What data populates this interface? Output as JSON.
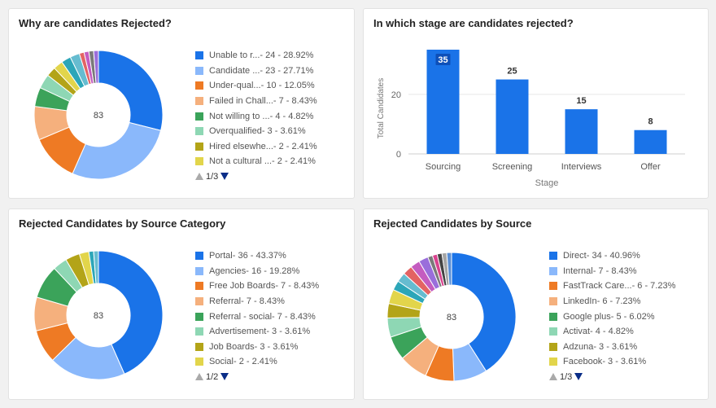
{
  "colors": {
    "accent": "#1a73e8",
    "palette": [
      "#1a73e8",
      "#8ab8fb",
      "#ee7a24",
      "#f5b07d",
      "#3ba35a",
      "#8ed7b4",
      "#b3a418",
      "#e2d54b",
      "#2ca6b8",
      "#e36363",
      "#c45cc0",
      "#9a6edb",
      "#7a7a7a"
    ]
  },
  "panels": {
    "rejection_reasons": {
      "title": "Why are candidates Rejected?",
      "center_total": "83",
      "pager": "1/3",
      "legend": [
        {
          "label": "Unable to r...",
          "stat": " - 24 - 28.92%"
        },
        {
          "label": "Candidate ...",
          "stat": " - 23 - 27.71%"
        },
        {
          "label": "Under-qual...",
          "stat": " - 10 - 12.05%"
        },
        {
          "label": "Failed in Chall...",
          "stat": " - 7 - 8.43%"
        },
        {
          "label": "Not willing to ...",
          "stat": " - 4 - 4.82%"
        },
        {
          "label": "Overqualified",
          "stat": " - 3 - 3.61%"
        },
        {
          "label": "Hired elsewhe...",
          "stat": " - 2 - 2.41%"
        },
        {
          "label": "Not a cultural ...",
          "stat": " - 2 - 2.41%"
        }
      ]
    },
    "rejection_stage": {
      "title": "In which stage are candidates rejected?"
    },
    "source_category": {
      "title": "Rejected Candidates by Source Category",
      "center_total": "83",
      "pager": "1/2",
      "legend": [
        {
          "label": "Portal",
          "stat": " - 36 - 43.37%"
        },
        {
          "label": "Agencies",
          "stat": " - 16 - 19.28%"
        },
        {
          "label": "Free Job Boards",
          "stat": " - 7 - 8.43%"
        },
        {
          "label": "Referral",
          "stat": " - 7 - 8.43%"
        },
        {
          "label": "Referral - social",
          "stat": " - 7 - 8.43%"
        },
        {
          "label": "Advertisement",
          "stat": " - 3 - 3.61%"
        },
        {
          "label": "Job Boards",
          "stat": " - 3 - 3.61%"
        },
        {
          "label": "Social",
          "stat": " - 2 - 2.41%"
        }
      ]
    },
    "source": {
      "title": "Rejected Candidates by Source",
      "center_total": "83",
      "pager": "1/3",
      "legend": [
        {
          "label": "Direct",
          "stat": " - 34 - 40.96%"
        },
        {
          "label": "Internal",
          "stat": " - 7 - 8.43%"
        },
        {
          "label": "FastTrack Care...",
          "stat": " - 6 - 7.23%"
        },
        {
          "label": "LinkedIn",
          "stat": " - 6 - 7.23%"
        },
        {
          "label": "Google plus",
          "stat": " - 5 - 6.02%"
        },
        {
          "label": "Activat",
          "stat": " - 4 - 4.82%"
        },
        {
          "label": "Adzuna",
          "stat": " - 3 - 3.61%"
        },
        {
          "label": "Facebook",
          "stat": " - 3 - 3.61%"
        }
      ]
    }
  },
  "chart_data": [
    {
      "type": "pie",
      "title": "Why are candidates Rejected?",
      "total": 83,
      "values": [
        24,
        23,
        10,
        7,
        4,
        3,
        2,
        2,
        2,
        2,
        1,
        1,
        1,
        1
      ],
      "colors": [
        "#1a73e8",
        "#8ab8fb",
        "#ee7a24",
        "#f5b07d",
        "#3ba35a",
        "#8ed7b4",
        "#b3a418",
        "#e2d54b",
        "#2ca6b8",
        "#66bcd0",
        "#e36363",
        "#c45cc0",
        "#7a7a7a",
        "#9a6edb"
      ]
    },
    {
      "type": "bar",
      "title": "In which stage are candidates rejected?",
      "categories": [
        "Sourcing",
        "Screening",
        "Interviews",
        "Offer"
      ],
      "values": [
        35,
        25,
        15,
        8
      ],
      "xlabel": "Stage",
      "ylabel": "Total Candidates",
      "ylim": [
        0,
        35
      ],
      "yticks": [
        0,
        20
      ],
      "color": "#1a73e8"
    },
    {
      "type": "pie",
      "title": "Rejected Candidates by Source Category",
      "total": 83,
      "values": [
        36,
        16,
        7,
        7,
        7,
        3,
        3,
        2,
        1,
        1
      ],
      "colors": [
        "#1a73e8",
        "#8ab8fb",
        "#ee7a24",
        "#f5b07d",
        "#3ba35a",
        "#8ed7b4",
        "#b3a418",
        "#e2d54b",
        "#2ca6b8",
        "#66bcd0"
      ]
    },
    {
      "type": "pie",
      "title": "Rejected Candidates by Source",
      "total": 83,
      "values": [
        34,
        7,
        6,
        6,
        5,
        4,
        3,
        3,
        2,
        2,
        2,
        2,
        2,
        1,
        1,
        1,
        1,
        1
      ],
      "colors": [
        "#1a73e8",
        "#8ab8fb",
        "#ee7a24",
        "#f5b07d",
        "#3ba35a",
        "#8ed7b4",
        "#b3a418",
        "#e2d54b",
        "#2ca6b8",
        "#66bcd0",
        "#e36363",
        "#c45cc0",
        "#9a6edb",
        "#7a7a7a",
        "#d9438f",
        "#444444",
        "#a5a5a5",
        "#5a8fd6"
      ]
    }
  ]
}
